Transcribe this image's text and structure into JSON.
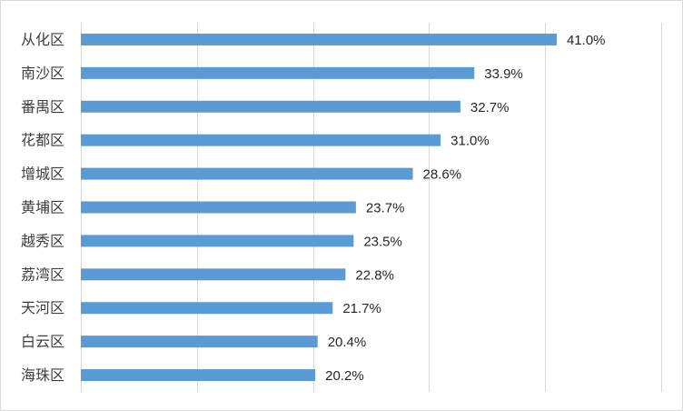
{
  "chart_data": {
    "type": "bar",
    "orientation": "horizontal",
    "categories": [
      "从化区",
      "南沙区",
      "番禺区",
      "花都区",
      "增城区",
      "黄埔区",
      "越秀区",
      "荔湾区",
      "天河区",
      "白云区",
      "海珠区"
    ],
    "values": [
      41.0,
      33.9,
      32.7,
      31.0,
      28.6,
      23.7,
      23.5,
      22.8,
      21.7,
      20.4,
      20.2
    ],
    "data_labels": [
      "41.0%",
      "33.9%",
      "32.7%",
      "31.0%",
      "28.6%",
      "23.7%",
      "23.5%",
      "22.8%",
      "21.7%",
      "20.4%",
      "20.2%"
    ],
    "unit": "%",
    "xlim": [
      0,
      50
    ],
    "x_gridlines": [
      0,
      10,
      20,
      30,
      40,
      50
    ],
    "grid": true,
    "bar_color": "#5b9bd5",
    "title": "",
    "xlabel": "",
    "ylabel": "",
    "legend": "none"
  }
}
